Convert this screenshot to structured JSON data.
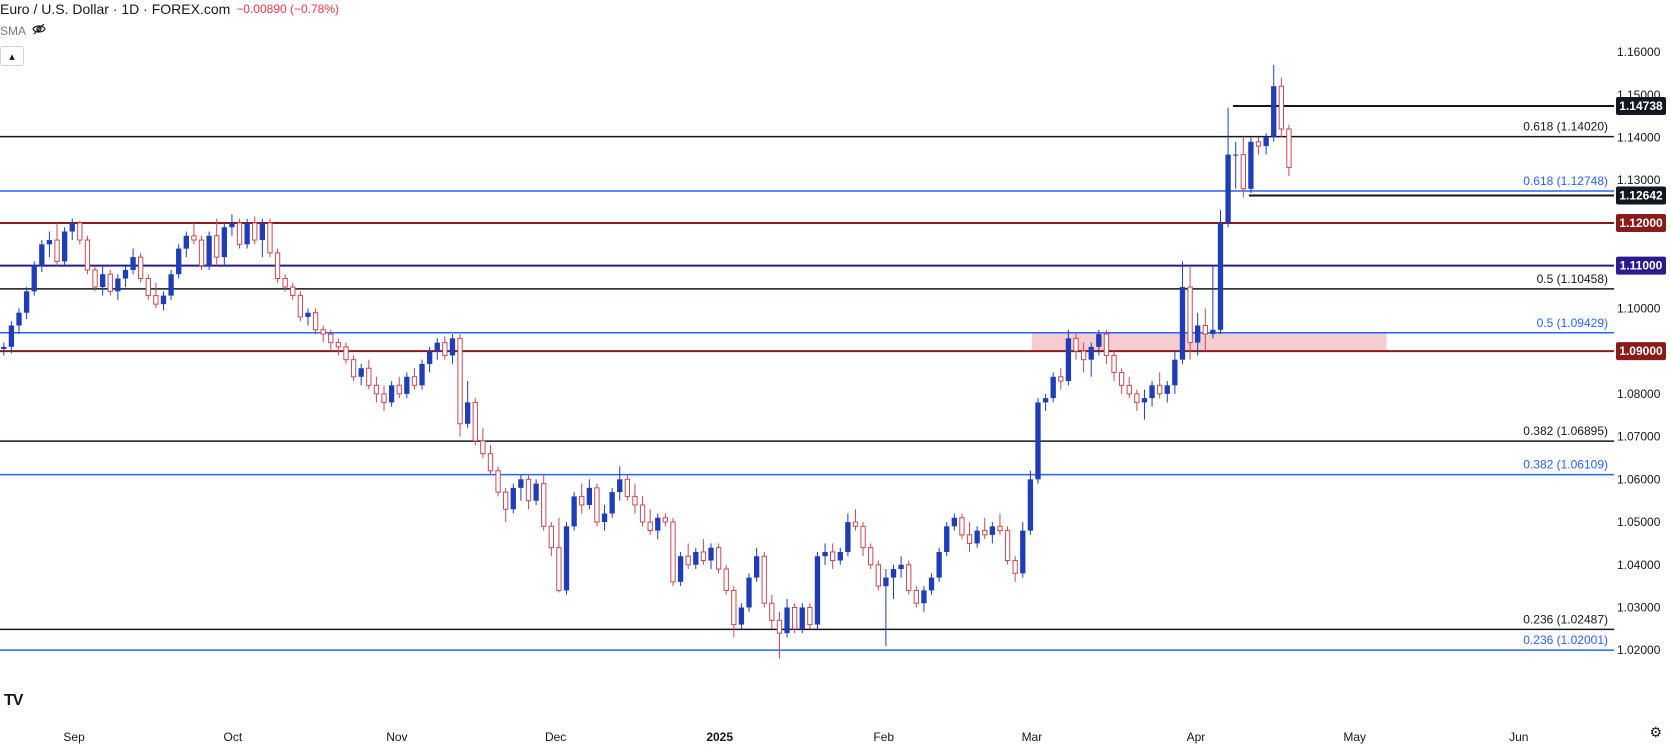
{
  "header": {
    "symbol": "Euro / U.S. Dollar · 1D · FOREX.com",
    "change": "−0.00890 (−0.78%)"
  },
  "indicator": {
    "name": "SMA",
    "icon": "eye-off-icon"
  },
  "logo": "TV",
  "colors": {
    "up": "#1e3eb8",
    "down": "#c54b55",
    "fib_blue": "#2962ff",
    "maroon": "#8b1a1a",
    "navy": "#2c1a8c",
    "zone": "#f3c4c8"
  },
  "chart_data": {
    "type": "candlestick",
    "title": "",
    "xlabel": "",
    "ylabel": "",
    "ylim": [
      1.0135,
      1.1675
    ],
    "y_ticks": [
      "1.16000",
      "1.15000",
      "1.14000",
      "1.13000",
      "1.12000",
      "1.11000",
      "1.10000",
      "1.09000",
      "1.08000",
      "1.07000",
      "1.06000",
      "1.05000",
      "1.04000",
      "1.03000",
      "1.02000"
    ],
    "x_labels": [
      {
        "label": "Sep",
        "day": 14
      },
      {
        "label": "Oct",
        "day": 44
      },
      {
        "label": "Nov",
        "day": 75
      },
      {
        "label": "Dec",
        "day": 105
      },
      {
        "label": "2025",
        "day": 136
      },
      {
        "label": "Feb",
        "day": 167
      },
      {
        "label": "Mar",
        "day": 195
      },
      {
        "label": "Apr",
        "day": 226
      },
      {
        "label": "May",
        "day": 256
      },
      {
        "label": "Jun",
        "day": 287
      }
    ],
    "x_range_days": [
      0,
      305
    ],
    "candles": [
      [
        1.0905,
        1.092,
        1.089,
        1.091
      ],
      [
        1.091,
        1.097,
        1.0895,
        1.096
      ],
      [
        1.096,
        1.1,
        1.094,
        1.099
      ],
      [
        1.099,
        1.105,
        1.0975,
        1.104
      ],
      [
        1.104,
        1.111,
        1.103,
        1.11
      ],
      [
        1.11,
        1.116,
        1.1085,
        1.115
      ],
      [
        1.115,
        1.118,
        1.112,
        1.116
      ],
      [
        1.116,
        1.12,
        1.11,
        1.111
      ],
      [
        1.111,
        1.119,
        1.11,
        1.118
      ],
      [
        1.118,
        1.121,
        1.116,
        1.12
      ],
      [
        1.12,
        1.1205,
        1.115,
        1.116
      ],
      [
        1.116,
        1.117,
        1.108,
        1.109
      ],
      [
        1.109,
        1.11,
        1.104,
        1.105
      ],
      [
        1.105,
        1.11,
        1.103,
        1.108
      ],
      [
        1.108,
        1.109,
        1.103,
        1.104
      ],
      [
        1.104,
        1.108,
        1.102,
        1.107
      ],
      [
        1.107,
        1.11,
        1.105,
        1.109
      ],
      [
        1.109,
        1.114,
        1.108,
        1.112
      ],
      [
        1.112,
        1.113,
        1.106,
        1.107
      ],
      [
        1.107,
        1.108,
        1.102,
        1.103
      ],
      [
        1.103,
        1.106,
        1.1,
        1.101
      ],
      [
        1.101,
        1.104,
        1.0995,
        1.103
      ],
      [
        1.103,
        1.109,
        1.102,
        1.108
      ],
      [
        1.108,
        1.115,
        1.107,
        1.114
      ],
      [
        1.114,
        1.118,
        1.112,
        1.117
      ],
      [
        1.117,
        1.12,
        1.115,
        1.116
      ],
      [
        1.116,
        1.117,
        1.109,
        1.11
      ],
      [
        1.11,
        1.118,
        1.109,
        1.117
      ],
      [
        1.117,
        1.121,
        1.11,
        1.112
      ],
      [
        1.112,
        1.12,
        1.11,
        1.119
      ],
      [
        1.119,
        1.122,
        1.117,
        1.12
      ],
      [
        1.12,
        1.121,
        1.114,
        1.115
      ],
      [
        1.115,
        1.121,
        1.114,
        1.12
      ],
      [
        1.12,
        1.1215,
        1.115,
        1.116
      ],
      [
        1.116,
        1.121,
        1.112,
        1.12
      ],
      [
        1.12,
        1.121,
        1.112,
        1.113
      ],
      [
        1.113,
        1.114,
        1.106,
        1.107
      ],
      [
        1.107,
        1.108,
        1.104,
        1.105
      ],
      [
        1.105,
        1.106,
        1.102,
        1.103
      ],
      [
        1.103,
        1.104,
        1.097,
        1.098
      ],
      [
        1.098,
        1.1,
        1.096,
        1.099
      ],
      [
        1.099,
        1.1,
        1.094,
        1.095
      ],
      [
        1.095,
        1.096,
        1.092,
        1.094
      ],
      [
        1.094,
        1.095,
        1.09,
        1.092
      ],
      [
        1.092,
        1.093,
        1.089,
        1.091
      ],
      [
        1.091,
        1.092,
        1.087,
        1.088
      ],
      [
        1.088,
        1.089,
        1.083,
        1.084
      ],
      [
        1.084,
        1.087,
        1.082,
        1.086
      ],
      [
        1.086,
        1.088,
        1.081,
        1.082
      ],
      [
        1.082,
        1.084,
        1.078,
        1.08
      ],
      [
        1.08,
        1.082,
        1.076,
        1.078
      ],
      [
        1.078,
        1.083,
        1.077,
        1.082
      ],
      [
        1.082,
        1.084,
        1.079,
        1.08
      ],
      [
        1.08,
        1.085,
        1.079,
        1.084
      ],
      [
        1.084,
        1.086,
        1.081,
        1.082
      ],
      [
        1.082,
        1.088,
        1.081,
        1.087
      ],
      [
        1.087,
        1.091,
        1.085,
        1.09
      ],
      [
        1.09,
        1.093,
        1.088,
        1.092
      ],
      [
        1.092,
        1.0935,
        1.088,
        1.089
      ],
      [
        1.089,
        1.094,
        1.087,
        1.093
      ],
      [
        1.093,
        1.094,
        1.07,
        1.073
      ],
      [
        1.073,
        1.083,
        1.072,
        1.078
      ],
      [
        1.078,
        1.079,
        1.068,
        1.069
      ],
      [
        1.069,
        1.072,
        1.065,
        1.066
      ],
      [
        1.066,
        1.068,
        1.061,
        1.062
      ],
      [
        1.062,
        1.063,
        1.056,
        1.057
      ],
      [
        1.057,
        1.058,
        1.05,
        1.053
      ],
      [
        1.053,
        1.059,
        1.052,
        1.058
      ],
      [
        1.058,
        1.061,
        1.055,
        1.06
      ],
      [
        1.06,
        1.061,
        1.053,
        1.055
      ],
      [
        1.055,
        1.06,
        1.054,
        1.059
      ],
      [
        1.059,
        1.061,
        1.048,
        1.049
      ],
      [
        1.049,
        1.05,
        1.042,
        1.044
      ],
      [
        1.044,
        1.051,
        1.0335,
        1.034
      ],
      [
        1.034,
        1.05,
        1.033,
        1.049
      ],
      [
        1.049,
        1.057,
        1.048,
        1.056
      ],
      [
        1.056,
        1.059,
        1.052,
        1.054
      ],
      [
        1.054,
        1.06,
        1.053,
        1.058
      ],
      [
        1.058,
        1.059,
        1.049,
        1.05
      ],
      [
        1.05,
        1.054,
        1.048,
        1.052
      ],
      [
        1.052,
        1.058,
        1.051,
        1.057
      ],
      [
        1.057,
        1.063,
        1.055,
        1.06
      ],
      [
        1.06,
        1.061,
        1.055,
        1.056
      ],
      [
        1.056,
        1.059,
        1.052,
        1.054
      ],
      [
        1.054,
        1.056,
        1.049,
        1.05
      ],
      [
        1.05,
        1.053,
        1.047,
        1.048
      ],
      [
        1.048,
        1.052,
        1.046,
        1.051
      ],
      [
        1.051,
        1.052,
        1.049,
        1.05
      ],
      [
        1.05,
        1.051,
        1.035,
        1.036
      ],
      [
        1.036,
        1.043,
        1.035,
        1.042
      ],
      [
        1.042,
        1.045,
        1.039,
        1.04
      ],
      [
        1.04,
        1.044,
        1.039,
        1.043
      ],
      [
        1.043,
        1.046,
        1.04,
        1.041
      ],
      [
        1.041,
        1.045,
        1.039,
        1.044
      ],
      [
        1.044,
        1.045,
        1.038,
        1.039
      ],
      [
        1.039,
        1.04,
        1.033,
        1.034
      ],
      [
        1.034,
        1.035,
        1.023,
        1.026
      ],
      [
        1.026,
        1.031,
        1.025,
        1.03
      ],
      [
        1.03,
        1.038,
        1.029,
        1.037
      ],
      [
        1.037,
        1.044,
        1.036,
        1.042
      ],
      [
        1.042,
        1.043,
        1.03,
        1.031
      ],
      [
        1.031,
        1.033,
        1.025,
        1.027
      ],
      [
        1.027,
        1.029,
        1.018,
        1.024
      ],
      [
        1.024,
        1.032,
        1.023,
        1.03
      ],
      [
        1.03,
        1.031,
        1.024,
        1.025
      ],
      [
        1.025,
        1.031,
        1.024,
        1.03
      ],
      [
        1.03,
        1.031,
        1.025,
        1.026
      ],
      [
        1.026,
        1.043,
        1.025,
        1.042
      ],
      [
        1.042,
        1.045,
        1.04,
        1.043
      ],
      [
        1.043,
        1.045,
        1.039,
        1.041
      ],
      [
        1.041,
        1.044,
        1.04,
        1.043
      ],
      [
        1.043,
        1.052,
        1.042,
        1.05
      ],
      [
        1.05,
        1.053,
        1.048,
        1.049
      ],
      [
        1.049,
        1.05,
        1.042,
        1.044
      ],
      [
        1.044,
        1.045,
        1.039,
        1.04
      ],
      [
        1.04,
        1.041,
        1.034,
        1.035
      ],
      [
        1.035,
        1.039,
        1.021,
        1.037
      ],
      [
        1.037,
        1.04,
        1.032,
        1.039
      ],
      [
        1.039,
        1.042,
        1.037,
        1.04
      ],
      [
        1.04,
        1.041,
        1.033,
        1.034
      ],
      [
        1.034,
        1.035,
        1.03,
        1.031
      ],
      [
        1.031,
        1.035,
        1.029,
        1.034
      ],
      [
        1.034,
        1.038,
        1.033,
        1.037
      ],
      [
        1.037,
        1.044,
        1.036,
        1.043
      ],
      [
        1.043,
        1.05,
        1.042,
        1.049
      ],
      [
        1.049,
        1.052,
        1.048,
        1.051
      ],
      [
        1.051,
        1.052,
        1.046,
        1.047
      ],
      [
        1.047,
        1.05,
        1.043,
        1.045
      ],
      [
        1.045,
        1.049,
        1.044,
        1.048
      ],
      [
        1.048,
        1.051,
        1.046,
        1.047
      ],
      [
        1.047,
        1.05,
        1.045,
        1.049
      ],
      [
        1.049,
        1.052,
        1.047,
        1.048
      ],
      [
        1.048,
        1.049,
        1.04,
        1.041
      ],
      [
        1.041,
        1.042,
        1.036,
        1.038
      ],
      [
        1.038,
        1.05,
        1.037,
        1.048
      ],
      [
        1.048,
        1.062,
        1.047,
        1.06
      ],
      [
        1.06,
        1.079,
        1.059,
        1.078
      ],
      [
        1.078,
        1.08,
        1.076,
        1.079
      ],
      [
        1.079,
        1.085,
        1.078,
        1.084
      ],
      [
        1.084,
        1.086,
        1.081,
        1.083
      ],
      [
        1.083,
        1.095,
        1.082,
        1.093
      ],
      [
        1.093,
        1.094,
        1.088,
        1.09
      ],
      [
        1.09,
        1.092,
        1.085,
        1.088
      ],
      [
        1.088,
        1.092,
        1.084,
        1.091
      ],
      [
        1.091,
        1.095,
        1.089,
        1.094
      ],
      [
        1.094,
        1.095,
        1.087,
        1.089
      ],
      [
        1.089,
        1.09,
        1.083,
        1.085
      ],
      [
        1.085,
        1.086,
        1.08,
        1.082
      ],
      [
        1.082,
        1.084,
        1.079,
        1.08
      ],
      [
        1.08,
        1.081,
        1.076,
        1.078
      ],
      [
        1.078,
        1.081,
        1.074,
        1.079
      ],
      [
        1.079,
        1.083,
        1.077,
        1.082
      ],
      [
        1.082,
        1.085,
        1.079,
        1.08
      ],
      [
        1.08,
        1.083,
        1.078,
        1.082
      ],
      [
        1.082,
        1.09,
        1.08,
        1.088
      ],
      [
        1.088,
        1.111,
        1.087,
        1.105
      ],
      [
        1.105,
        1.11,
        1.088,
        1.092
      ],
      [
        1.092,
        1.099,
        1.089,
        1.096
      ],
      [
        1.096,
        1.1,
        1.09,
        1.094
      ],
      [
        1.094,
        1.11,
        1.093,
        1.095
      ],
      [
        1.095,
        1.123,
        1.094,
        1.12
      ],
      [
        1.12,
        1.147,
        1.119,
        1.136
      ],
      [
        1.136,
        1.139,
        1.128,
        1.136
      ],
      [
        1.136,
        1.14,
        1.126,
        1.128
      ],
      [
        1.128,
        1.14,
        1.127,
        1.139
      ],
      [
        1.139,
        1.14,
        1.136,
        1.138
      ],
      [
        1.138,
        1.141,
        1.136,
        1.14
      ],
      [
        1.14,
        1.157,
        1.139,
        1.152
      ],
      [
        1.152,
        1.154,
        1.14,
        1.142
      ],
      [
        1.142,
        1.143,
        1.131,
        1.133
      ]
    ],
    "candle_start_day": 0,
    "candle_step_days": 1.437,
    "zone": {
      "from_day": 195,
      "to_day": 262,
      "low": 1.09,
      "high": 1.0943
    },
    "horizontal_lines": [
      {
        "value": 1.14738,
        "color": "#131722",
        "from_day": 233,
        "width": 2,
        "tag": "1.14738",
        "tag_bg": "#131722"
      },
      {
        "value": 1.12642,
        "color": "#131722",
        "from_day": 236,
        "width": 2,
        "tag": "1.12642",
        "tag_bg": "#131722"
      },
      {
        "value": 1.1402,
        "color": "#131722",
        "width": 1.5,
        "label": "0.618 (1.14020)",
        "label_color": "#131722"
      },
      {
        "value": 1.12748,
        "color": "#2962ff",
        "width": 1.5,
        "label": "0.618 (1.12748)",
        "label_color": "#2962ff"
      },
      {
        "value": 1.12,
        "color": "#8b1a1a",
        "width": 2,
        "tag": "1.12000",
        "tag_bg": "#8b1a1a"
      },
      {
        "value": 1.11,
        "color": "#2c1a8c",
        "width": 2,
        "tag": "1.11000",
        "tag_bg": "#2c1a8c"
      },
      {
        "value": 1.10458,
        "color": "#131722",
        "width": 1.5,
        "label": "0.5 (1.10458)",
        "label_color": "#131722"
      },
      {
        "value": 1.09429,
        "color": "#2962ff",
        "width": 1.5,
        "label": "0.5 (1.09429)",
        "label_color": "#2962ff"
      },
      {
        "value": 1.09,
        "color": "#8b1a1a",
        "width": 2,
        "tag": "1.09000",
        "tag_bg": "#8b1a1a"
      },
      {
        "value": 1.06895,
        "color": "#131722",
        "width": 1.5,
        "label": "0.382 (1.06895)",
        "label_color": "#131722"
      },
      {
        "value": 1.06109,
        "color": "#2962ff",
        "width": 1.5,
        "label": "0.382 (1.06109)",
        "label_color": "#2962ff"
      },
      {
        "value": 1.02487,
        "color": "#131722",
        "width": 1.5,
        "label": "0.236 (1.02487)",
        "label_color": "#131722"
      },
      {
        "value": 1.02001,
        "color": "#2962ff",
        "width": 1.5,
        "label": "0.236 (1.02001)",
        "label_color": "#2962ff"
      }
    ]
  }
}
